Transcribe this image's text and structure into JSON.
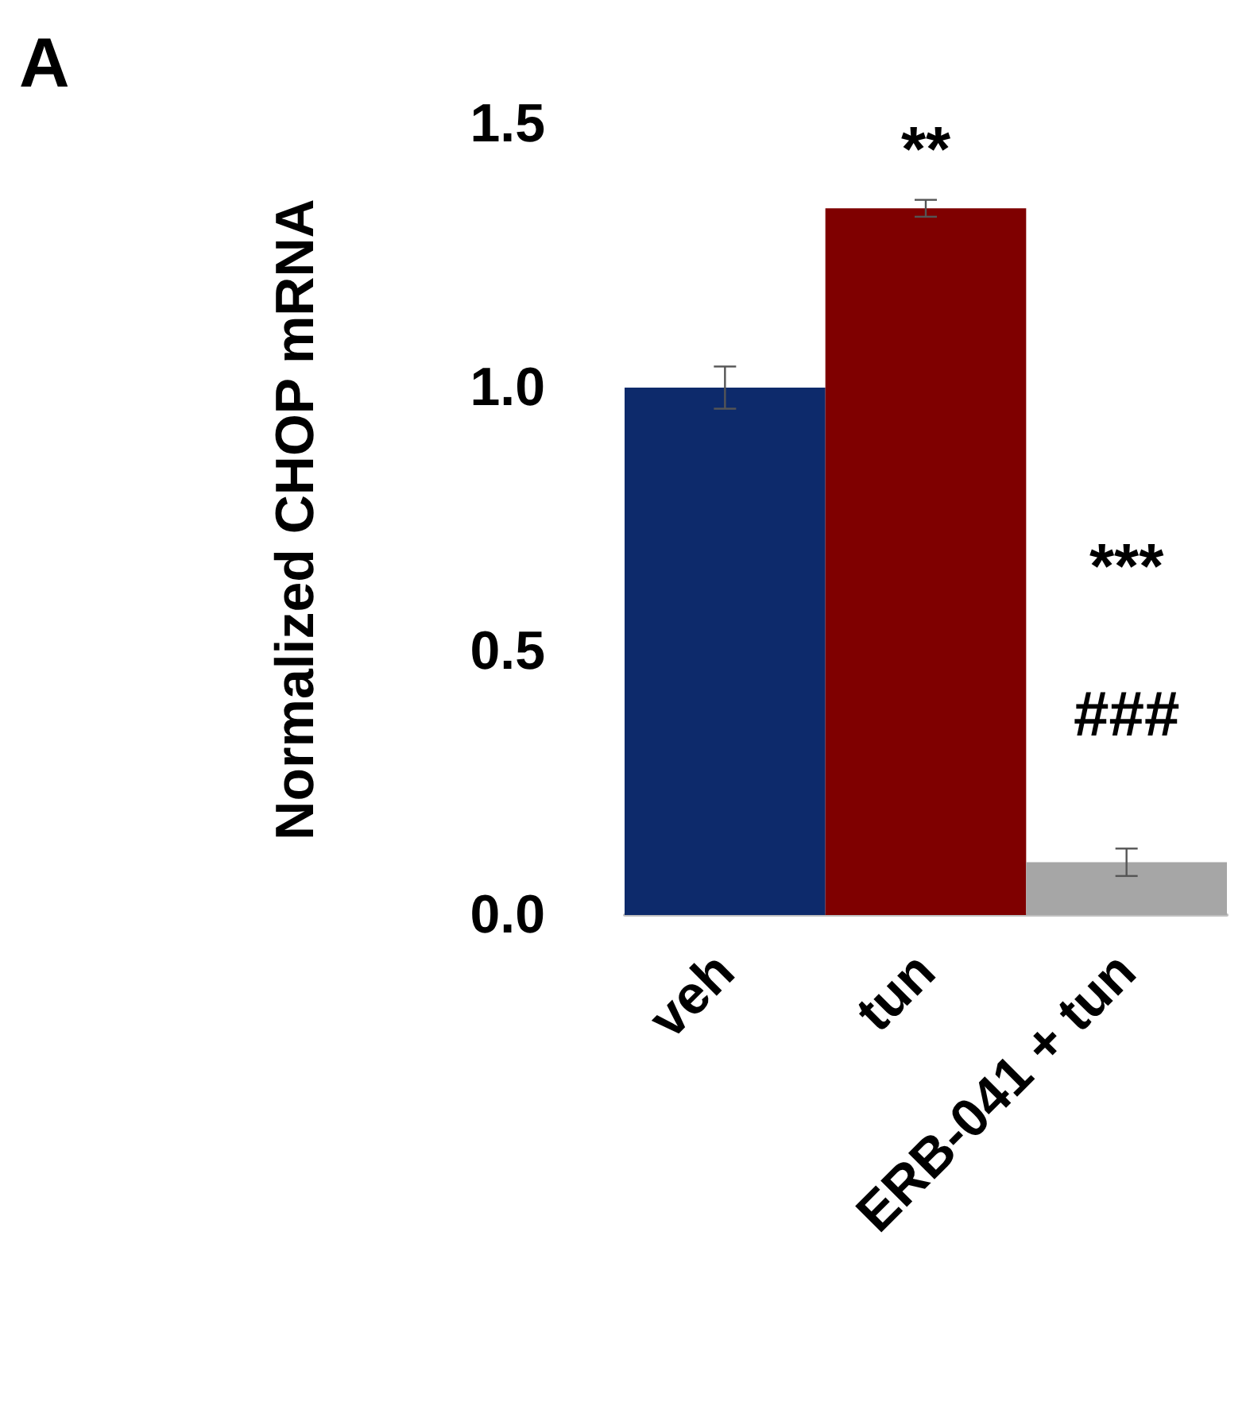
{
  "chart_data": {
    "type": "bar",
    "ylabel": "Normalized CHOP mRNA",
    "categories": [
      "veh",
      "tun",
      "ERB-041 + tun"
    ],
    "values": [
      1.0,
      1.34,
      0.1
    ],
    "colors": [
      "#0d2a6b",
      "#7f0000",
      "#a6a6a6"
    ],
    "errors": [
      0.04,
      0.016,
      0.026
    ],
    "ylim": [
      0,
      1.5
    ],
    "yticks": [
      {
        "value": 0,
        "label": "0.0"
      },
      {
        "value": 0.5,
        "label": "0.5"
      },
      {
        "value": 1,
        "label": "1.0"
      },
      {
        "value": 1.5,
        "label": "1.5"
      }
    ],
    "grid": false,
    "annotations": [
      "A",
      "**",
      "***",
      "###"
    ]
  }
}
